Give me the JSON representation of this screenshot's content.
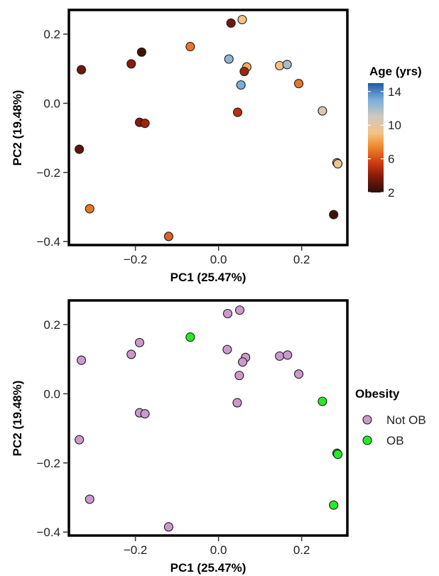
{
  "chart_data": [
    {
      "type": "scatter",
      "xlabel": "PC1 (25.47%)",
      "ylabel": "PC2 (19.48%)",
      "xlim": [
        -0.36,
        0.31
      ],
      "ylim": [
        -0.41,
        0.27
      ],
      "xticks": [
        -0.2,
        0.0,
        0.2
      ],
      "xtick_labels": [
        "−0.2",
        "0.0",
        "0.2"
      ],
      "yticks": [
        -0.4,
        -0.2,
        0.0,
        0.2
      ],
      "ytick_labels": [
        "−0.4",
        "−0.2",
        "0.0",
        "0.2"
      ],
      "grid": false,
      "legend": {
        "title": "Age (yrs)",
        "kind": "colorbar",
        "range": [
          2,
          15
        ],
        "ticks": [
          "14",
          "10",
          "6",
          "2"
        ],
        "tick_values": [
          14,
          10,
          6,
          2
        ],
        "stops": [
          {
            "value": 2,
            "color": "#2b0f08"
          },
          {
            "value": 4,
            "color": "#8a1a0c"
          },
          {
            "value": 5.5,
            "color": "#cf3a13"
          },
          {
            "value": 7.5,
            "color": "#f08a2c"
          },
          {
            "value": 9,
            "color": "#f5c281"
          },
          {
            "value": 11,
            "color": "#cfc9be"
          },
          {
            "value": 13,
            "color": "#7aaed9"
          },
          {
            "value": 15,
            "color": "#1f5aa8"
          }
        ]
      },
      "points": [
        {
          "x": 0.03,
          "y": 0.232,
          "age": 3.5
        },
        {
          "x": 0.057,
          "y": 0.242,
          "age": 9
        },
        {
          "x": -0.185,
          "y": 0.148,
          "age": 2.5
        },
        {
          "x": -0.068,
          "y": 0.164,
          "age": 7
        },
        {
          "x": 0.025,
          "y": 0.128,
          "age": 12.5
        },
        {
          "x": 0.068,
          "y": 0.105,
          "age": 8.5
        },
        {
          "x": 0.062,
          "y": 0.092,
          "age": 4.5
        },
        {
          "x": 0.147,
          "y": 0.109,
          "age": 9
        },
        {
          "x": 0.165,
          "y": 0.112,
          "age": 12
        },
        {
          "x": 0.054,
          "y": 0.053,
          "age": 13
        },
        {
          "x": 0.193,
          "y": 0.057,
          "age": 7
        },
        {
          "x": -0.21,
          "y": 0.114,
          "age": 4
        },
        {
          "x": -0.33,
          "y": 0.097,
          "age": 3.5
        },
        {
          "x": 0.046,
          "y": -0.026,
          "age": 5
        },
        {
          "x": 0.25,
          "y": -0.022,
          "age": 10.5
        },
        {
          "x": -0.19,
          "y": -0.055,
          "age": 4
        },
        {
          "x": -0.177,
          "y": -0.058,
          "age": 4.5
        },
        {
          "x": -0.335,
          "y": -0.133,
          "age": 3
        },
        {
          "x": 0.285,
          "y": -0.172,
          "age": 9.5
        },
        {
          "x": 0.287,
          "y": -0.175,
          "age": 9.5
        },
        {
          "x": -0.31,
          "y": -0.305,
          "age": 7
        },
        {
          "x": 0.277,
          "y": -0.322,
          "age": 2.5
        },
        {
          "x": -0.12,
          "y": -0.385,
          "age": 6.5
        }
      ]
    },
    {
      "type": "scatter",
      "xlabel": "PC1 (25.47%)",
      "ylabel": "PC2 (19.48%)",
      "xlim": [
        -0.36,
        0.31
      ],
      "ylim": [
        -0.41,
        0.27
      ],
      "xticks": [
        -0.2,
        0.0,
        0.2
      ],
      "xtick_labels": [
        "−0.2",
        "0.0",
        "0.2"
      ],
      "yticks": [
        -0.4,
        -0.2,
        0.0,
        0.2
      ],
      "ytick_labels": [
        "−0.4",
        "−0.2",
        "0.0",
        "0.2"
      ],
      "grid": false,
      "legend": {
        "title": "Obesity",
        "kind": "categorical",
        "entries": [
          {
            "label": "Not OB",
            "color": "#cc99cc"
          },
          {
            "label": "OB",
            "color": "#22ee22"
          }
        ]
      },
      "points": [
        {
          "x": 0.022,
          "y": 0.232,
          "group": "Not OB"
        },
        {
          "x": 0.051,
          "y": 0.242,
          "group": "Not OB"
        },
        {
          "x": -0.19,
          "y": 0.148,
          "group": "Not OB"
        },
        {
          "x": -0.068,
          "y": 0.164,
          "group": "OB"
        },
        {
          "x": 0.021,
          "y": 0.128,
          "group": "Not OB"
        },
        {
          "x": 0.065,
          "y": 0.105,
          "group": "Not OB"
        },
        {
          "x": 0.058,
          "y": 0.092,
          "group": "Not OB"
        },
        {
          "x": 0.147,
          "y": 0.109,
          "group": "Not OB"
        },
        {
          "x": 0.166,
          "y": 0.112,
          "group": "Not OB"
        },
        {
          "x": 0.05,
          "y": 0.053,
          "group": "Not OB"
        },
        {
          "x": 0.193,
          "y": 0.057,
          "group": "Not OB"
        },
        {
          "x": -0.21,
          "y": 0.114,
          "group": "Not OB"
        },
        {
          "x": -0.33,
          "y": 0.097,
          "group": "Not OB"
        },
        {
          "x": 0.045,
          "y": -0.026,
          "group": "Not OB"
        },
        {
          "x": 0.25,
          "y": -0.022,
          "group": "OB"
        },
        {
          "x": -0.19,
          "y": -0.055,
          "group": "Not OB"
        },
        {
          "x": -0.177,
          "y": -0.058,
          "group": "Not OB"
        },
        {
          "x": -0.335,
          "y": -0.133,
          "group": "Not OB"
        },
        {
          "x": 0.285,
          "y": -0.172,
          "group": "OB"
        },
        {
          "x": 0.287,
          "y": -0.175,
          "group": "OB"
        },
        {
          "x": -0.31,
          "y": -0.305,
          "group": "Not OB"
        },
        {
          "x": 0.277,
          "y": -0.322,
          "group": "OB"
        },
        {
          "x": -0.12,
          "y": -0.385,
          "group": "Not OB"
        }
      ]
    }
  ]
}
